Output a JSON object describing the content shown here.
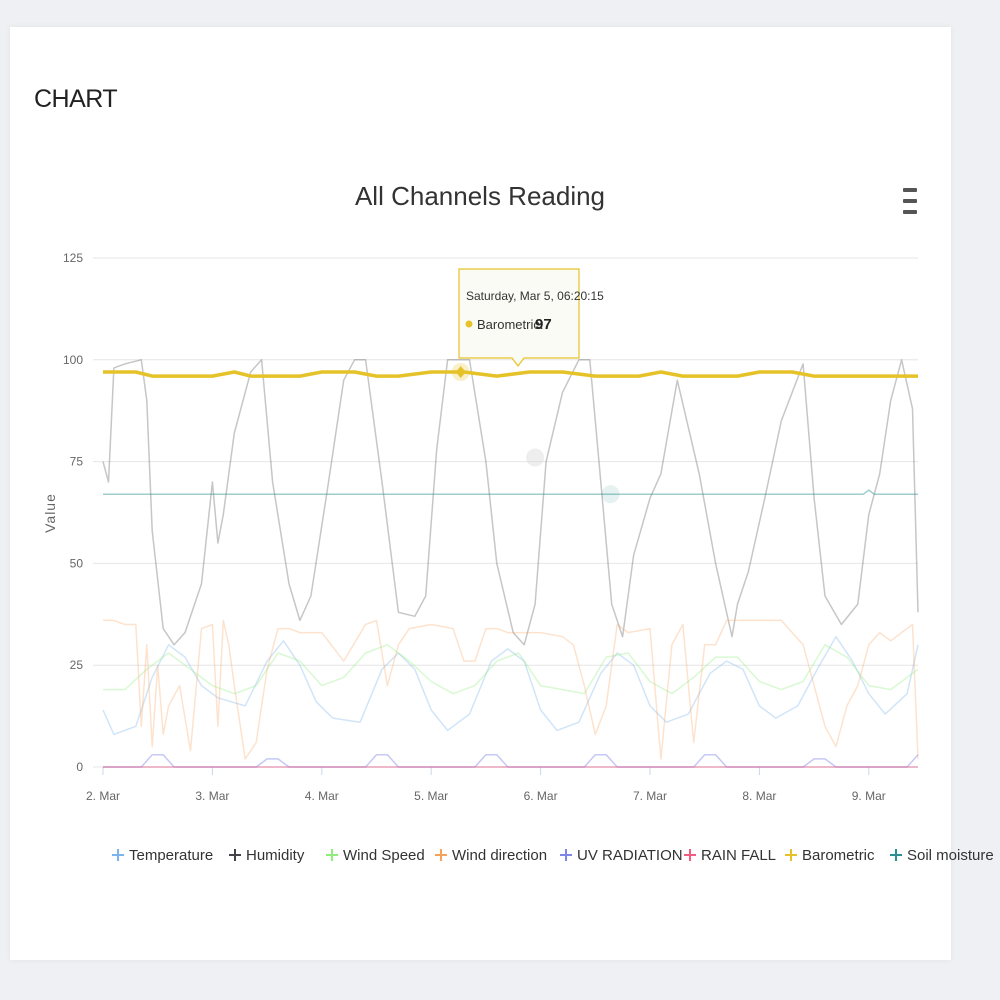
{
  "card": {
    "title": "CHART"
  },
  "menu": {
    "icon": "hamburger-menu-icon"
  },
  "tooltip": {
    "date": "Saturday, Mar 5, 06:20:15",
    "series": "Barometric",
    "value": "97",
    "color": "#e6c229"
  },
  "chart_data": {
    "type": "line",
    "title": "All Channels Reading",
    "ylabel": "Value",
    "xlabel": "",
    "ylim": [
      0,
      125
    ],
    "yticks": [
      0,
      25,
      50,
      75,
      100,
      125
    ],
    "xlim": [
      2.0,
      9.45
    ],
    "xticks": [
      {
        "x": 2,
        "label": "2. Mar"
      },
      {
        "x": 3,
        "label": "3. Mar"
      },
      {
        "x": 4,
        "label": "4. Mar"
      },
      {
        "x": 5,
        "label": "5. Mar"
      },
      {
        "x": 6,
        "label": "6. Mar"
      },
      {
        "x": 7,
        "label": "7. Mar"
      },
      {
        "x": 8,
        "label": "8. Mar"
      },
      {
        "x": 9,
        "label": "9. Mar"
      }
    ],
    "grid": true,
    "legend_position": "bottom",
    "series": [
      {
        "name": "Temperature",
        "color": "#7cb5ec",
        "x": [
          2.0,
          2.1,
          2.3,
          2.45,
          2.6,
          2.75,
          2.9,
          3.05,
          3.3,
          3.5,
          3.65,
          3.8,
          3.95,
          4.1,
          4.35,
          4.55,
          4.7,
          4.85,
          5.0,
          5.15,
          5.35,
          5.55,
          5.7,
          5.85,
          6.0,
          6.15,
          6.35,
          6.55,
          6.7,
          6.85,
          7.0,
          7.15,
          7.35,
          7.55,
          7.7,
          7.85,
          8.0,
          8.15,
          8.35,
          8.55,
          8.7,
          8.85,
          9.0,
          9.15,
          9.35,
          9.45
        ],
        "y": [
          14,
          8,
          10,
          22,
          30,
          27,
          20,
          17,
          15,
          26,
          31,
          25,
          16,
          12,
          11,
          24,
          28,
          24,
          14,
          9,
          13,
          26,
          29,
          26,
          14,
          9,
          11,
          23,
          28,
          25,
          15,
          11,
          13,
          23,
          26,
          24,
          15,
          12,
          15,
          25,
          32,
          26,
          18,
          13,
          18,
          30
        ]
      },
      {
        "name": "Humidity",
        "color": "#434348",
        "x": [
          2.0,
          2.05,
          2.1,
          2.2,
          2.35,
          2.4,
          2.45,
          2.55,
          2.65,
          2.75,
          2.9,
          3.0,
          3.05,
          3.1,
          3.2,
          3.35,
          3.45,
          3.55,
          3.7,
          3.8,
          3.9,
          4.05,
          4.2,
          4.3,
          4.4,
          4.55,
          4.7,
          4.85,
          4.95,
          5.05,
          5.15,
          5.35,
          5.5,
          5.6,
          5.75,
          5.85,
          5.95,
          6.05,
          6.2,
          6.35,
          6.45,
          6.55,
          6.65,
          6.75,
          6.85,
          7.0,
          7.1,
          7.25,
          7.45,
          7.6,
          7.75,
          7.8,
          7.9,
          8.05,
          8.2,
          8.4,
          8.5,
          8.6,
          8.75,
          8.9,
          9.0,
          9.1,
          9.2,
          9.3,
          9.4,
          9.45
        ],
        "y": [
          75,
          70,
          98,
          99,
          100,
          90,
          58,
          34,
          30,
          33,
          45,
          70,
          55,
          62,
          82,
          97,
          100,
          70,
          45,
          36,
          42,
          68,
          95,
          100,
          100,
          70,
          38,
          37,
          42,
          78,
          100,
          100,
          75,
          50,
          33,
          30,
          40,
          75,
          92,
          100,
          100,
          70,
          40,
          32,
          52,
          66,
          72,
          95,
          72,
          50,
          32,
          40,
          48,
          66,
          85,
          99,
          66,
          42,
          35,
          40,
          62,
          72,
          90,
          100,
          88,
          38
        ]
      },
      {
        "name": "Wind Speed",
        "color": "#90ed7d",
        "x": [
          2.0,
          2.2,
          2.4,
          2.6,
          2.8,
          3.0,
          3.2,
          3.4,
          3.6,
          3.8,
          4.0,
          4.2,
          4.4,
          4.6,
          4.8,
          5.0,
          5.2,
          5.4,
          5.6,
          5.8,
          6.0,
          6.2,
          6.4,
          6.6,
          6.8,
          7.0,
          7.2,
          7.4,
          7.6,
          7.8,
          8.0,
          8.2,
          8.4,
          8.6,
          8.8,
          9.0,
          9.2,
          9.45
        ],
        "y": [
          19,
          19,
          24,
          28,
          24,
          20,
          18,
          20,
          28,
          26,
          20,
          22,
          28,
          30,
          26,
          21,
          18,
          20,
          26,
          28,
          20,
          19,
          18,
          27,
          28,
          21,
          18,
          22,
          27,
          27,
          21,
          19,
          21,
          30,
          27,
          20,
          19,
          24
        ]
      },
      {
        "name": "Wind direction",
        "color": "#f7a35c",
        "x": [
          2.0,
          2.1,
          2.2,
          2.3,
          2.35,
          2.4,
          2.45,
          2.5,
          2.55,
          2.6,
          2.7,
          2.8,
          2.9,
          3.0,
          3.05,
          3.1,
          3.15,
          3.2,
          3.3,
          3.4,
          3.45,
          3.5,
          3.6,
          3.7,
          3.8,
          3.9,
          4.0,
          4.2,
          4.4,
          4.5,
          4.6,
          4.7,
          4.8,
          5.0,
          5.2,
          5.3,
          5.4,
          5.5,
          5.6,
          5.7,
          5.8,
          6.0,
          6.2,
          6.3,
          6.4,
          6.5,
          6.6,
          6.7,
          6.8,
          7.0,
          7.1,
          7.2,
          7.3,
          7.4,
          7.5,
          7.6,
          7.7,
          7.8,
          8.0,
          8.2,
          8.4,
          8.5,
          8.6,
          8.7,
          8.8,
          8.9,
          9.0,
          9.1,
          9.2,
          9.3,
          9.4,
          9.45
        ],
        "y": [
          36,
          36,
          35,
          35,
          10,
          30,
          5,
          25,
          8,
          15,
          20,
          4,
          34,
          35,
          10,
          36,
          30,
          20,
          2,
          6,
          15,
          24,
          34,
          34,
          33,
          33,
          33,
          26,
          35,
          36,
          20,
          30,
          34,
          35,
          34,
          26,
          26,
          34,
          34,
          33,
          33,
          33,
          32,
          30,
          20,
          8,
          15,
          35,
          33,
          34,
          2,
          30,
          35,
          6,
          30,
          30,
          36,
          36,
          36,
          36,
          30,
          20,
          10,
          5,
          15,
          20,
          30,
          33,
          31,
          33,
          35,
          2
        ]
      },
      {
        "name": "UV RADIATION",
        "color": "#8085e9",
        "x": [
          2.0,
          2.35,
          2.45,
          2.55,
          2.65,
          3.0,
          3.4,
          3.5,
          3.6,
          3.7,
          4.0,
          4.4,
          4.5,
          4.6,
          4.7,
          5.0,
          5.4,
          5.5,
          5.6,
          5.7,
          6.0,
          6.4,
          6.5,
          6.6,
          6.7,
          7.0,
          7.4,
          7.5,
          7.6,
          7.7,
          8.0,
          8.4,
          8.5,
          8.6,
          8.7,
          9.0,
          9.35,
          9.45
        ],
        "y": [
          0,
          0,
          3,
          3,
          0,
          0,
          0,
          2,
          2,
          0,
          0,
          0,
          3,
          3,
          0,
          0,
          0,
          3,
          3,
          0,
          0,
          0,
          3,
          3,
          0,
          0,
          0,
          3,
          3,
          0,
          0,
          0,
          2,
          2,
          0,
          0,
          0,
          3
        ]
      },
      {
        "name": "RAIN FALL",
        "color": "#f15c80",
        "x": [
          2.0,
          9.45
        ],
        "y": [
          0,
          0
        ]
      },
      {
        "name": "Barometric",
        "color": "#e6c229",
        "x": [
          2.0,
          2.3,
          2.45,
          2.8,
          3.0,
          3.2,
          3.35,
          3.5,
          3.8,
          4.0,
          4.3,
          4.5,
          4.7,
          5.0,
          5.3,
          5.6,
          5.9,
          6.2,
          6.5,
          6.9,
          7.1,
          7.3,
          7.5,
          7.8,
          8.0,
          8.3,
          8.5,
          8.7,
          9.0,
          9.45
        ],
        "y": [
          97,
          97,
          96,
          96,
          96,
          97,
          96,
          96,
          96,
          97,
          97,
          96,
          96,
          97,
          97,
          96,
          97,
          97,
          96,
          96,
          97,
          96,
          96,
          96,
          97,
          97,
          96,
          96,
          96,
          96
        ]
      },
      {
        "name": "Soil moisture",
        "color": "#2b908f",
        "x": [
          2.0,
          8.95,
          9.0,
          9.05,
          9.45
        ],
        "y": [
          67,
          67,
          68,
          67,
          67
        ]
      }
    ]
  }
}
